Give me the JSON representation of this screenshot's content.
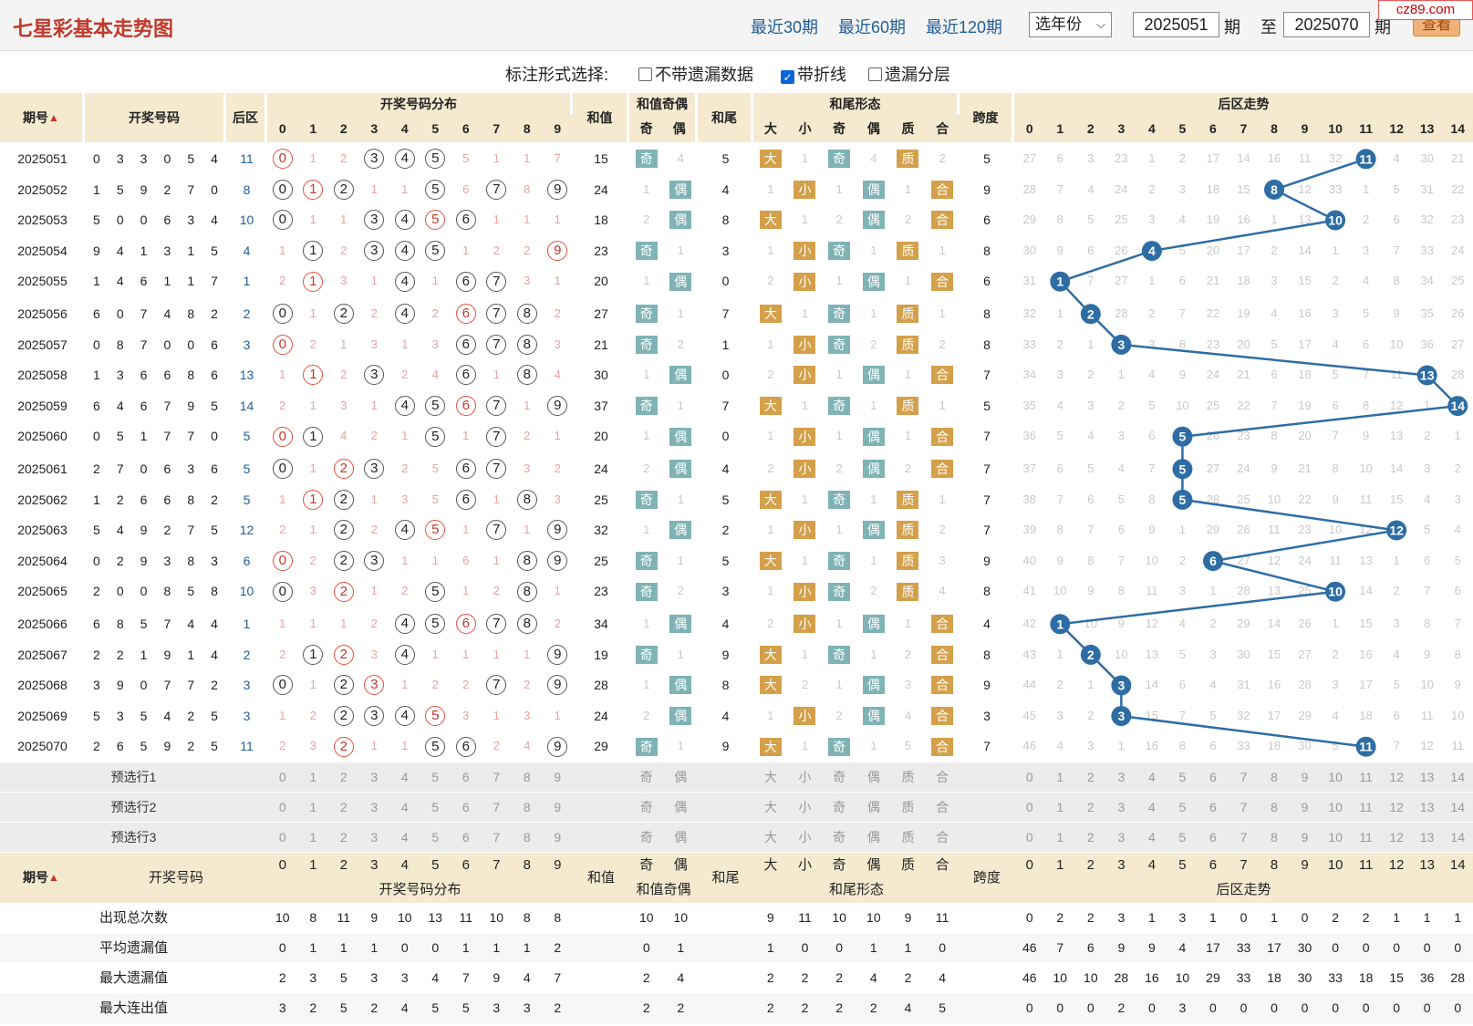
{
  "header": {
    "title": "七星彩基本走势图",
    "links": [
      "最近30期",
      "最近60期",
      "最近120期"
    ],
    "year_select": "选年份",
    "from_value": "2025051",
    "qi_label": "期",
    "to_label": "至",
    "to_value": "2025070",
    "view_button": "查看",
    "site_logo": "cz89.com"
  },
  "options": {
    "label": "标注形式选择:",
    "items": [
      {
        "label": "不带遗漏数据",
        "checked": false
      },
      {
        "label": "带折线",
        "checked": true
      },
      {
        "label": "遗漏分层",
        "checked": false
      }
    ]
  },
  "columns": {
    "period": "期号",
    "sort_icon": "sort-icon",
    "numbers": "开奖号码",
    "back": "后区",
    "dist": "开奖号码分布",
    "sum": "和值",
    "sum_parity": "和值奇偶",
    "odd": "奇",
    "even": "偶",
    "tail": "和尾",
    "tail_form": "和尾形态",
    "big": "大",
    "small": "小",
    "prime": "质",
    "composite": "合",
    "span": "跨度",
    "back_trend": "后区走势",
    "digits": [
      "0",
      "1",
      "2",
      "3",
      "4",
      "5",
      "6",
      "7",
      "8",
      "9"
    ],
    "back_digits": [
      "0",
      "1",
      "2",
      "3",
      "4",
      "5",
      "6",
      "7",
      "8",
      "9",
      "10",
      "11",
      "12",
      "13",
      "14"
    ]
  },
  "rows": [
    {
      "period": "2025051",
      "nums": [
        "0",
        "3",
        "3",
        "0",
        "5",
        "4"
      ],
      "back": "11",
      "dist": [
        "0",
        "1",
        "2",
        "3",
        "4",
        "5",
        "5",
        "1",
        "1",
        "7"
      ],
      "sum": "15",
      "sp": [
        "奇",
        "4"
      ],
      "tail": "5",
      "form": [
        "大",
        "1",
        "奇",
        "4",
        "质",
        "2"
      ],
      "span": "5",
      "trend": [
        "27",
        "6",
        "3",
        "23",
        "1",
        "2",
        "17",
        "14",
        "16",
        "11",
        "32",
        "11",
        "4",
        "30",
        "21"
      ]
    },
    {
      "period": "2025052",
      "nums": [
        "1",
        "5",
        "9",
        "2",
        "7",
        "0"
      ],
      "back": "8",
      "dist": [
        "0",
        "1",
        "2",
        "1",
        "1",
        "5",
        "6",
        "7",
        "8",
        "9"
      ],
      "sum": "24",
      "sp": [
        "1",
        "偶"
      ],
      "tail": "4",
      "form": [
        "1",
        "小",
        "1",
        "偶",
        "1",
        "合"
      ],
      "span": "9",
      "trend": [
        "28",
        "7",
        "4",
        "24",
        "2",
        "3",
        "18",
        "15",
        "8",
        "12",
        "33",
        "1",
        "5",
        "31",
        "22"
      ]
    },
    {
      "period": "2025053",
      "nums": [
        "5",
        "0",
        "0",
        "6",
        "3",
        "4"
      ],
      "back": "10",
      "dist": [
        "0",
        "1",
        "1",
        "3",
        "4",
        "5",
        "6",
        "1",
        "1",
        "1"
      ],
      "sum": "18",
      "sp": [
        "2",
        "偶"
      ],
      "tail": "8",
      "form": [
        "大",
        "1",
        "2",
        "偶",
        "2",
        "合"
      ],
      "span": "6",
      "trend": [
        "29",
        "8",
        "5",
        "25",
        "3",
        "4",
        "19",
        "16",
        "1",
        "13",
        "10",
        "2",
        "6",
        "32",
        "23"
      ]
    },
    {
      "period": "2025054",
      "nums": [
        "9",
        "4",
        "1",
        "3",
        "1",
        "5"
      ],
      "back": "4",
      "dist": [
        "1",
        "1",
        "2",
        "3",
        "4",
        "5",
        "1",
        "2",
        "2",
        "9"
      ],
      "sum": "23",
      "sp": [
        "奇",
        "1"
      ],
      "tail": "3",
      "form": [
        "1",
        "小",
        "奇",
        "1",
        "质",
        "1"
      ],
      "span": "8",
      "trend": [
        "30",
        "9",
        "6",
        "26",
        "4",
        "5",
        "20",
        "17",
        "2",
        "14",
        "1",
        "3",
        "7",
        "33",
        "24"
      ]
    },
    {
      "period": "2025055",
      "nums": [
        "1",
        "4",
        "6",
        "1",
        "1",
        "7"
      ],
      "back": "1",
      "dist": [
        "2",
        "1",
        "3",
        "1",
        "4",
        "1",
        "6",
        "7",
        "3",
        "1"
      ],
      "sum": "20",
      "sp": [
        "1",
        "偶"
      ],
      "tail": "0",
      "form": [
        "2",
        "小",
        "1",
        "偶",
        "1",
        "合"
      ],
      "span": "6",
      "trend": [
        "31",
        "1",
        "7",
        "27",
        "1",
        "6",
        "21",
        "18",
        "3",
        "15",
        "2",
        "4",
        "8",
        "34",
        "25"
      ]
    },
    {
      "period": "2025056",
      "nums": [
        "6",
        "0",
        "7",
        "4",
        "8",
        "2"
      ],
      "back": "2",
      "dist": [
        "0",
        "1",
        "2",
        "2",
        "4",
        "2",
        "6",
        "7",
        "8",
        "2"
      ],
      "sum": "27",
      "sp": [
        "奇",
        "1"
      ],
      "tail": "7",
      "form": [
        "大",
        "1",
        "奇",
        "1",
        "质",
        "1"
      ],
      "span": "8",
      "trend": [
        "32",
        "1",
        "2",
        "28",
        "2",
        "7",
        "22",
        "19",
        "4",
        "16",
        "3",
        "5",
        "9",
        "35",
        "26"
      ]
    },
    {
      "period": "2025057",
      "nums": [
        "0",
        "8",
        "7",
        "0",
        "0",
        "6"
      ],
      "back": "3",
      "dist": [
        "0",
        "2",
        "1",
        "3",
        "1",
        "3",
        "6",
        "7",
        "8",
        "3"
      ],
      "sum": "21",
      "sp": [
        "奇",
        "2"
      ],
      "tail": "1",
      "form": [
        "1",
        "小",
        "奇",
        "2",
        "质",
        "2"
      ],
      "span": "8",
      "trend": [
        "33",
        "2",
        "1",
        "3",
        "3",
        "8",
        "23",
        "20",
        "5",
        "17",
        "4",
        "6",
        "10",
        "36",
        "27"
      ]
    },
    {
      "period": "2025058",
      "nums": [
        "1",
        "3",
        "6",
        "6",
        "8",
        "6"
      ],
      "back": "13",
      "dist": [
        "1",
        "1",
        "2",
        "3",
        "2",
        "4",
        "6",
        "1",
        "8",
        "4"
      ],
      "sum": "30",
      "sp": [
        "1",
        "偶"
      ],
      "tail": "0",
      "form": [
        "2",
        "小",
        "1",
        "偶",
        "1",
        "合"
      ],
      "span": "7",
      "trend": [
        "34",
        "3",
        "2",
        "1",
        "4",
        "9",
        "24",
        "21",
        "6",
        "18",
        "5",
        "7",
        "11",
        "13",
        "28"
      ]
    },
    {
      "period": "2025059",
      "nums": [
        "6",
        "4",
        "6",
        "7",
        "9",
        "5"
      ],
      "back": "14",
      "dist": [
        "2",
        "1",
        "3",
        "1",
        "4",
        "5",
        "6",
        "7",
        "1",
        "9"
      ],
      "sum": "37",
      "sp": [
        "奇",
        "1"
      ],
      "tail": "7",
      "form": [
        "大",
        "1",
        "奇",
        "1",
        "质",
        "1"
      ],
      "span": "5",
      "trend": [
        "35",
        "4",
        "3",
        "2",
        "5",
        "10",
        "25",
        "22",
        "7",
        "19",
        "6",
        "8",
        "12",
        "1",
        "14"
      ]
    },
    {
      "period": "2025060",
      "nums": [
        "0",
        "5",
        "1",
        "7",
        "7",
        "0"
      ],
      "back": "5",
      "dist": [
        "0",
        "1",
        "4",
        "2",
        "1",
        "5",
        "1",
        "7",
        "2",
        "1"
      ],
      "sum": "20",
      "sp": [
        "1",
        "偶"
      ],
      "tail": "0",
      "form": [
        "1",
        "小",
        "1",
        "偶",
        "1",
        "合"
      ],
      "span": "7",
      "trend": [
        "36",
        "5",
        "4",
        "3",
        "6",
        "5",
        "26",
        "23",
        "8",
        "20",
        "7",
        "9",
        "13",
        "2",
        "1"
      ]
    },
    {
      "period": "2025061",
      "nums": [
        "2",
        "7",
        "0",
        "6",
        "3",
        "6"
      ],
      "back": "5",
      "dist": [
        "0",
        "1",
        "2",
        "3",
        "2",
        "5",
        "6",
        "7",
        "3",
        "2"
      ],
      "sum": "24",
      "sp": [
        "2",
        "偶"
      ],
      "tail": "4",
      "form": [
        "2",
        "小",
        "2",
        "偶",
        "2",
        "合"
      ],
      "span": "7",
      "trend": [
        "37",
        "6",
        "5",
        "4",
        "7",
        "5",
        "27",
        "24",
        "9",
        "21",
        "8",
        "10",
        "14",
        "3",
        "2"
      ]
    },
    {
      "period": "2025062",
      "nums": [
        "1",
        "2",
        "6",
        "6",
        "8",
        "2"
      ],
      "back": "5",
      "dist": [
        "1",
        "1",
        "2",
        "1",
        "3",
        "5",
        "6",
        "1",
        "8",
        "3"
      ],
      "sum": "25",
      "sp": [
        "奇",
        "1"
      ],
      "tail": "5",
      "form": [
        "大",
        "1",
        "奇",
        "1",
        "质",
        "1"
      ],
      "span": "7",
      "trend": [
        "38",
        "7",
        "6",
        "5",
        "8",
        "5",
        "28",
        "25",
        "10",
        "22",
        "9",
        "11",
        "15",
        "4",
        "3"
      ]
    },
    {
      "period": "2025063",
      "nums": [
        "5",
        "4",
        "9",
        "2",
        "7",
        "5"
      ],
      "back": "12",
      "dist": [
        "2",
        "1",
        "2",
        "2",
        "4",
        "5",
        "1",
        "7",
        "1",
        "9"
      ],
      "sum": "32",
      "sp": [
        "1",
        "偶"
      ],
      "tail": "2",
      "form": [
        "1",
        "小",
        "1",
        "偶",
        "质",
        "2"
      ],
      "span": "7",
      "trend": [
        "39",
        "8",
        "7",
        "6",
        "9",
        "1",
        "29",
        "26",
        "11",
        "23",
        "10",
        "12",
        "12",
        "5",
        "4"
      ]
    },
    {
      "period": "2025064",
      "nums": [
        "0",
        "2",
        "9",
        "3",
        "8",
        "3"
      ],
      "back": "6",
      "dist": [
        "0",
        "2",
        "2",
        "3",
        "1",
        "1",
        "6",
        "1",
        "8",
        "9"
      ],
      "sum": "25",
      "sp": [
        "奇",
        "1"
      ],
      "tail": "5",
      "form": [
        "大",
        "1",
        "奇",
        "1",
        "质",
        "3"
      ],
      "span": "9",
      "trend": [
        "40",
        "9",
        "8",
        "7",
        "10",
        "2",
        "6",
        "27",
        "12",
        "24",
        "11",
        "13",
        "1",
        "6",
        "5"
      ]
    },
    {
      "period": "2025065",
      "nums": [
        "2",
        "0",
        "0",
        "8",
        "5",
        "8"
      ],
      "back": "10",
      "dist": [
        "0",
        "3",
        "2",
        "1",
        "2",
        "5",
        "1",
        "2",
        "8",
        "1"
      ],
      "sum": "23",
      "sp": [
        "奇",
        "2"
      ],
      "tail": "3",
      "form": [
        "1",
        "小",
        "奇",
        "2",
        "质",
        "4"
      ],
      "span": "8",
      "trend": [
        "41",
        "10",
        "9",
        "8",
        "11",
        "3",
        "1",
        "28",
        "13",
        "25",
        "10",
        "14",
        "2",
        "7",
        "6"
      ]
    },
    {
      "period": "2025066",
      "nums": [
        "6",
        "8",
        "5",
        "7",
        "4",
        "4"
      ],
      "back": "1",
      "dist": [
        "1",
        "1",
        "1",
        "2",
        "4",
        "5",
        "6",
        "7",
        "8",
        "2"
      ],
      "sum": "34",
      "sp": [
        "1",
        "偶"
      ],
      "tail": "4",
      "form": [
        "2",
        "小",
        "1",
        "偶",
        "1",
        "合"
      ],
      "span": "4",
      "trend": [
        "42",
        "1",
        "10",
        "9",
        "12",
        "4",
        "2",
        "29",
        "14",
        "26",
        "1",
        "15",
        "3",
        "8",
        "7"
      ]
    },
    {
      "period": "2025067",
      "nums": [
        "2",
        "2",
        "1",
        "9",
        "1",
        "4"
      ],
      "back": "2",
      "dist": [
        "2",
        "1",
        "2",
        "3",
        "4",
        "1",
        "1",
        "1",
        "1",
        "9"
      ],
      "sum": "19",
      "sp": [
        "奇",
        "1"
      ],
      "tail": "9",
      "form": [
        "大",
        "1",
        "奇",
        "1",
        "2",
        "合"
      ],
      "span": "8",
      "trend": [
        "43",
        "1",
        "2",
        "10",
        "13",
        "5",
        "3",
        "30",
        "15",
        "27",
        "2",
        "16",
        "4",
        "9",
        "8"
      ]
    },
    {
      "period": "2025068",
      "nums": [
        "3",
        "9",
        "0",
        "7",
        "7",
        "2"
      ],
      "back": "3",
      "dist": [
        "0",
        "1",
        "2",
        "3",
        "1",
        "2",
        "2",
        "7",
        "2",
        "9"
      ],
      "sum": "28",
      "sp": [
        "1",
        "偶"
      ],
      "tail": "8",
      "form": [
        "大",
        "2",
        "1",
        "偶",
        "3",
        "合"
      ],
      "span": "9",
      "trend": [
        "44",
        "2",
        "1",
        "3",
        "14",
        "6",
        "4",
        "31",
        "16",
        "28",
        "3",
        "17",
        "5",
        "10",
        "9"
      ]
    },
    {
      "period": "2025069",
      "nums": [
        "5",
        "3",
        "5",
        "4",
        "2",
        "5"
      ],
      "back": "3",
      "dist": [
        "1",
        "2",
        "2",
        "3",
        "4",
        "5",
        "3",
        "1",
        "3",
        "1"
      ],
      "sum": "24",
      "sp": [
        "2",
        "偶"
      ],
      "tail": "4",
      "form": [
        "1",
        "小",
        "2",
        "偶",
        "4",
        "合"
      ],
      "span": "3",
      "trend": [
        "45",
        "3",
        "2",
        "3",
        "15",
        "7",
        "5",
        "32",
        "17",
        "29",
        "4",
        "18",
        "6",
        "11",
        "10"
      ]
    },
    {
      "period": "2025070",
      "nums": [
        "2",
        "6",
        "5",
        "9",
        "2",
        "5"
      ],
      "back": "11",
      "dist": [
        "2",
        "3",
        "2",
        "1",
        "1",
        "5",
        "6",
        "2",
        "4",
        "9"
      ],
      "sum": "29",
      "sp": [
        "奇",
        "1"
      ],
      "tail": "9",
      "form": [
        "大",
        "1",
        "奇",
        "1",
        "5",
        "合"
      ],
      "span": "7",
      "trend": [
        "46",
        "4",
        "3",
        "1",
        "16",
        "8",
        "6",
        "33",
        "18",
        "30",
        "5",
        "11",
        "7",
        "12",
        "11"
      ]
    }
  ],
  "presel": [
    "预选行1",
    "预选行2",
    "预选行3"
  ],
  "footer_header": {
    "period": "期号",
    "numbers": "开奖号码",
    "dist": "开奖号码分布",
    "sum": "和值",
    "sum_parity": "和值奇偶",
    "tail": "和尾",
    "tail_form": "和尾形态",
    "span": "跨度",
    "back_trend": "后区走势"
  },
  "stats": [
    {
      "label": "出现总次数",
      "dist": [
        "10",
        "8",
        "11",
        "9",
        "10",
        "13",
        "11",
        "10",
        "8",
        "8"
      ],
      "sp": [
        "10",
        "10"
      ],
      "form": [
        "9",
        "11",
        "10",
        "10",
        "9",
        "11"
      ],
      "trend": [
        "0",
        "2",
        "2",
        "3",
        "1",
        "3",
        "1",
        "0",
        "1",
        "0",
        "2",
        "2",
        "1",
        "1",
        "1"
      ]
    },
    {
      "label": "平均遗漏值",
      "dist": [
        "0",
        "1",
        "1",
        "1",
        "0",
        "0",
        "1",
        "1",
        "1",
        "2"
      ],
      "sp": [
        "0",
        "1"
      ],
      "form": [
        "1",
        "0",
        "0",
        "1",
        "1",
        "0"
      ],
      "trend": [
        "46",
        "7",
        "6",
        "9",
        "9",
        "4",
        "17",
        "33",
        "17",
        "30",
        "0",
        "0",
        "0",
        "0",
        "0"
      ]
    },
    {
      "label": "最大遗漏值",
      "dist": [
        "2",
        "3",
        "5",
        "3",
        "3",
        "4",
        "7",
        "9",
        "4",
        "7"
      ],
      "sp": [
        "2",
        "4"
      ],
      "form": [
        "2",
        "2",
        "2",
        "4",
        "2",
        "4"
      ],
      "trend": [
        "46",
        "10",
        "10",
        "28",
        "16",
        "10",
        "29",
        "33",
        "18",
        "30",
        "33",
        "18",
        "15",
        "36",
        "28"
      ]
    },
    {
      "label": "最大连出值",
      "dist": [
        "3",
        "2",
        "5",
        "2",
        "4",
        "5",
        "5",
        "3",
        "3",
        "2"
      ],
      "sp": [
        "2",
        "2"
      ],
      "form": [
        "2",
        "2",
        "2",
        "2",
        "4",
        "5"
      ],
      "trend": [
        "0",
        "0",
        "0",
        "2",
        "0",
        "3",
        "0",
        "0",
        "0",
        "0",
        "0",
        "0",
        "0",
        "0",
        "0"
      ]
    }
  ],
  "colors": {
    "accent": "#c0392b",
    "link": "#1f5e99",
    "header_bg": "#f5ead0",
    "ball_fill": "#2e6da4",
    "tag_gold": "#d4a04a",
    "tag_teal": "#7fb3b5"
  }
}
